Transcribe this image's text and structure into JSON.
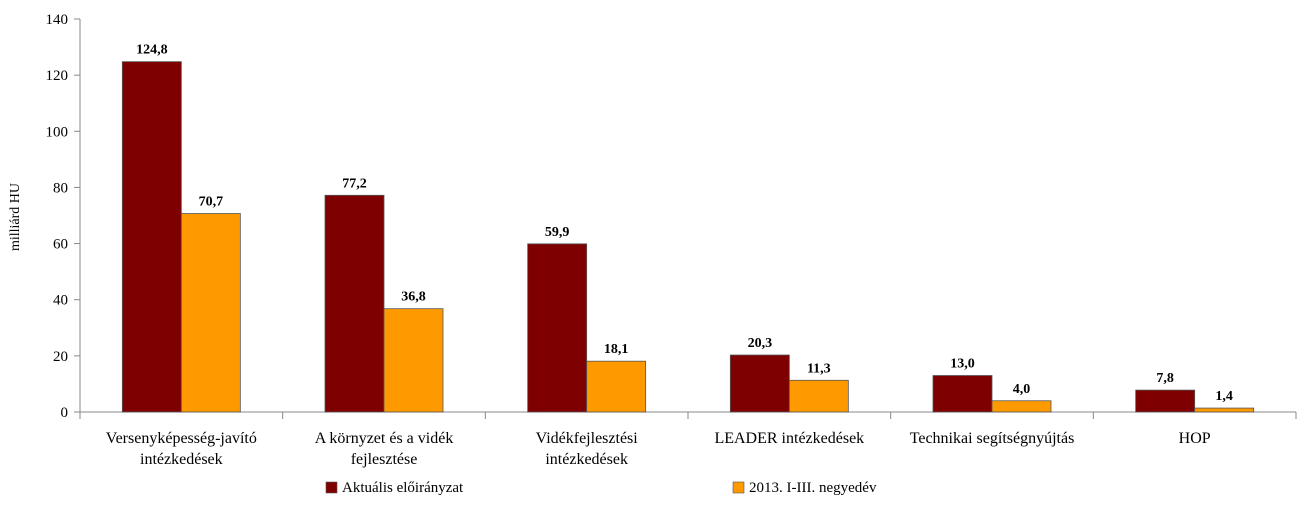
{
  "chart_data": {
    "type": "bar",
    "ylabel": "milliárd HU",
    "ylim": [
      0,
      140
    ],
    "yticks": [
      0,
      20,
      40,
      60,
      80,
      100,
      120,
      140
    ],
    "grid": false,
    "legend_position": "bottom",
    "categories": [
      [
        "Versenyképesség-javító",
        "intézkedések"
      ],
      [
        "A környzet és a vidék",
        "fejlesztése"
      ],
      [
        "Vidékfejlesztési",
        "intézkedések"
      ],
      [
        "LEADER intézkedések"
      ],
      [
        "Technikai segítségnyújtás"
      ],
      [
        "HOP"
      ]
    ],
    "series": [
      {
        "name": "Aktuális előirányzat",
        "color": "#7f0000",
        "values": [
          124.8,
          77.2,
          59.9,
          20.3,
          13.0,
          7.8
        ],
        "labels": [
          "124,8",
          "77,2",
          "59,9",
          "20,3",
          "13,0",
          "7,8"
        ]
      },
      {
        "name": "2013. I-III. negyedév",
        "color": "#ff9900",
        "values": [
          70.7,
          36.8,
          18.1,
          11.3,
          4.0,
          1.4
        ],
        "labels": [
          "70,7",
          "36,8",
          "18,1",
          "11,3",
          "4,0",
          "1,4"
        ]
      }
    ]
  }
}
